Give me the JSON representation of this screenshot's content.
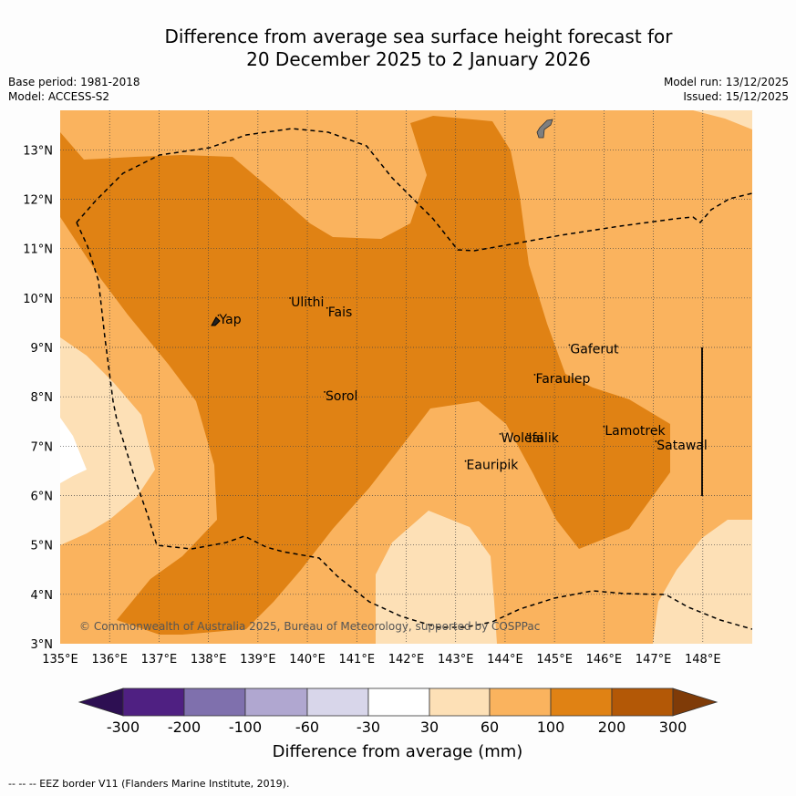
{
  "title": {
    "line1": "Difference from average sea surface height forecast for",
    "line2": "20 December 2025 to 2 January 2026"
  },
  "meta": {
    "base_period": "Base period: 1981-2018",
    "model": "Model: ACCESS-S2",
    "model_run": "Model run: 13/12/2025",
    "issued": "Issued: 15/12/2025"
  },
  "map": {
    "lon_range": [
      135,
      149
    ],
    "lat_range": [
      3,
      13.8
    ],
    "lon_ticks": [
      "135°E",
      "136°E",
      "137°E",
      "138°E",
      "139°E",
      "140°E",
      "141°E",
      "142°E",
      "143°E",
      "144°E",
      "145°E",
      "146°E",
      "147°E",
      "148°E"
    ],
    "lat_ticks": [
      "3°N",
      "4°N",
      "5°N",
      "6°N",
      "7°N",
      "8°N",
      "9°N",
      "10°N",
      "11°N",
      "12°N",
      "13°N"
    ],
    "copyright": "© Commonwealth of Australia 2025, Bureau of Meteorology, supported by COSPPac",
    "places": [
      {
        "name": "Yap",
        "lon": 138.2,
        "lat": 9.5
      },
      {
        "name": "Ulithi",
        "lon": 139.65,
        "lat": 9.85
      },
      {
        "name": "Fais",
        "lon": 140.4,
        "lat": 9.65
      },
      {
        "name": "Sorol",
        "lon": 140.35,
        "lat": 7.95
      },
      {
        "name": "Gaferut",
        "lon": 145.3,
        "lat": 8.9
      },
      {
        "name": "Faraulep",
        "lon": 144.6,
        "lat": 8.3
      },
      {
        "name": "Woleai",
        "lon": 143.9,
        "lat": 7.1
      },
      {
        "name": "Ifalik",
        "lon": 144.45,
        "lat": 7.1
      },
      {
        "name": "Lamotrek",
        "lon": 146.0,
        "lat": 7.25
      },
      {
        "name": "Satawal",
        "lon": 147.05,
        "lat": 6.95
      },
      {
        "name": "Eauripik",
        "lon": 143.2,
        "lat": 6.55
      }
    ]
  },
  "colorbar": {
    "tick_labels": [
      "-300",
      "-200",
      "-100",
      "-60",
      "-30",
      "30",
      "60",
      "100",
      "200",
      "300"
    ],
    "colors": [
      "#2d0f52",
      "#4f2082",
      "#7f70ad",
      "#b0a7d0",
      "#d8d6ea",
      "#ffffff",
      "#fde0b6",
      "#fab35e",
      "#e08214",
      "#b35806",
      "#7f3b08"
    ],
    "label": "Difference from average (mm)"
  },
  "footer": "--  --  -- EEZ border V11 (Flanders Marine Institute, 2019)."
}
